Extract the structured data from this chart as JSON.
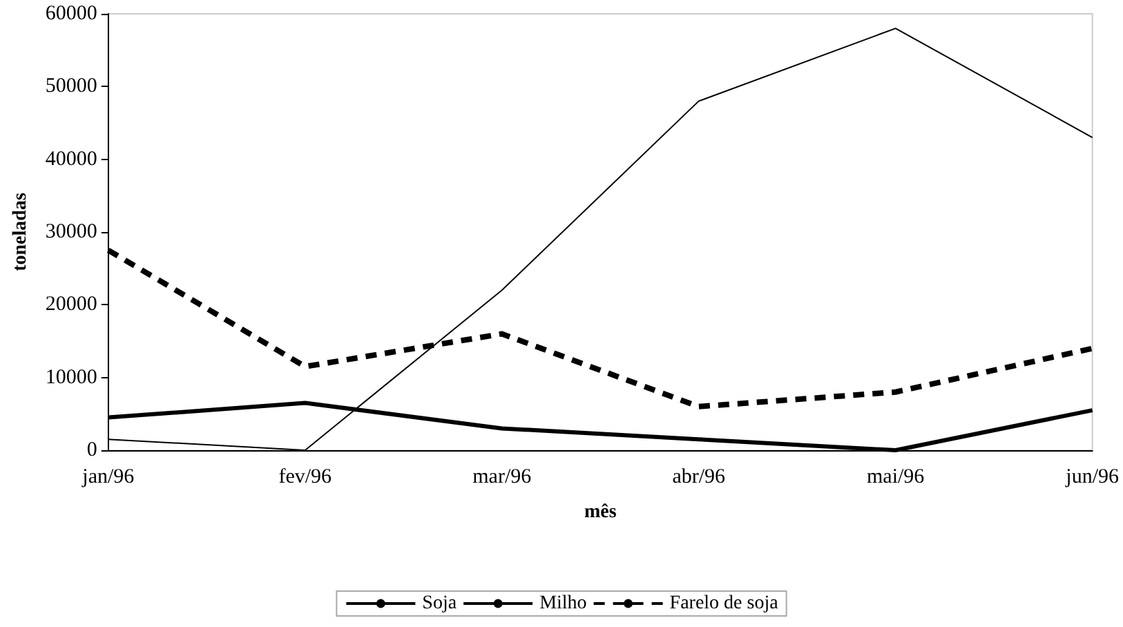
{
  "chart_data": {
    "type": "line",
    "xlabel": "mês",
    "ylabel": "toneladas",
    "categories": [
      "jan/96",
      "fev/96",
      "mar/96",
      "abr/96",
      "mai/96",
      "jun/96"
    ],
    "series": [
      {
        "name": "Soja",
        "color": "#000000",
        "line_style": "solid",
        "values": [
          1500,
          0,
          22000,
          48000,
          58000,
          43000
        ]
      },
      {
        "name": "Milho",
        "color": "#000000",
        "line_style": "solid",
        "values": [
          4500,
          6500,
          3000,
          1500,
          0,
          5500
        ]
      },
      {
        "name": "Farelo de soja",
        "color": "#000000",
        "line_style": "dashed",
        "values": [
          27500,
          11500,
          16000,
          6000,
          8000,
          14000
        ]
      }
    ],
    "ylim": [
      0,
      60000
    ],
    "yticks": [
      0,
      10000,
      20000,
      30000,
      40000,
      50000,
      60000
    ],
    "grid": false,
    "legend": "bottom",
    "marker": "none"
  }
}
